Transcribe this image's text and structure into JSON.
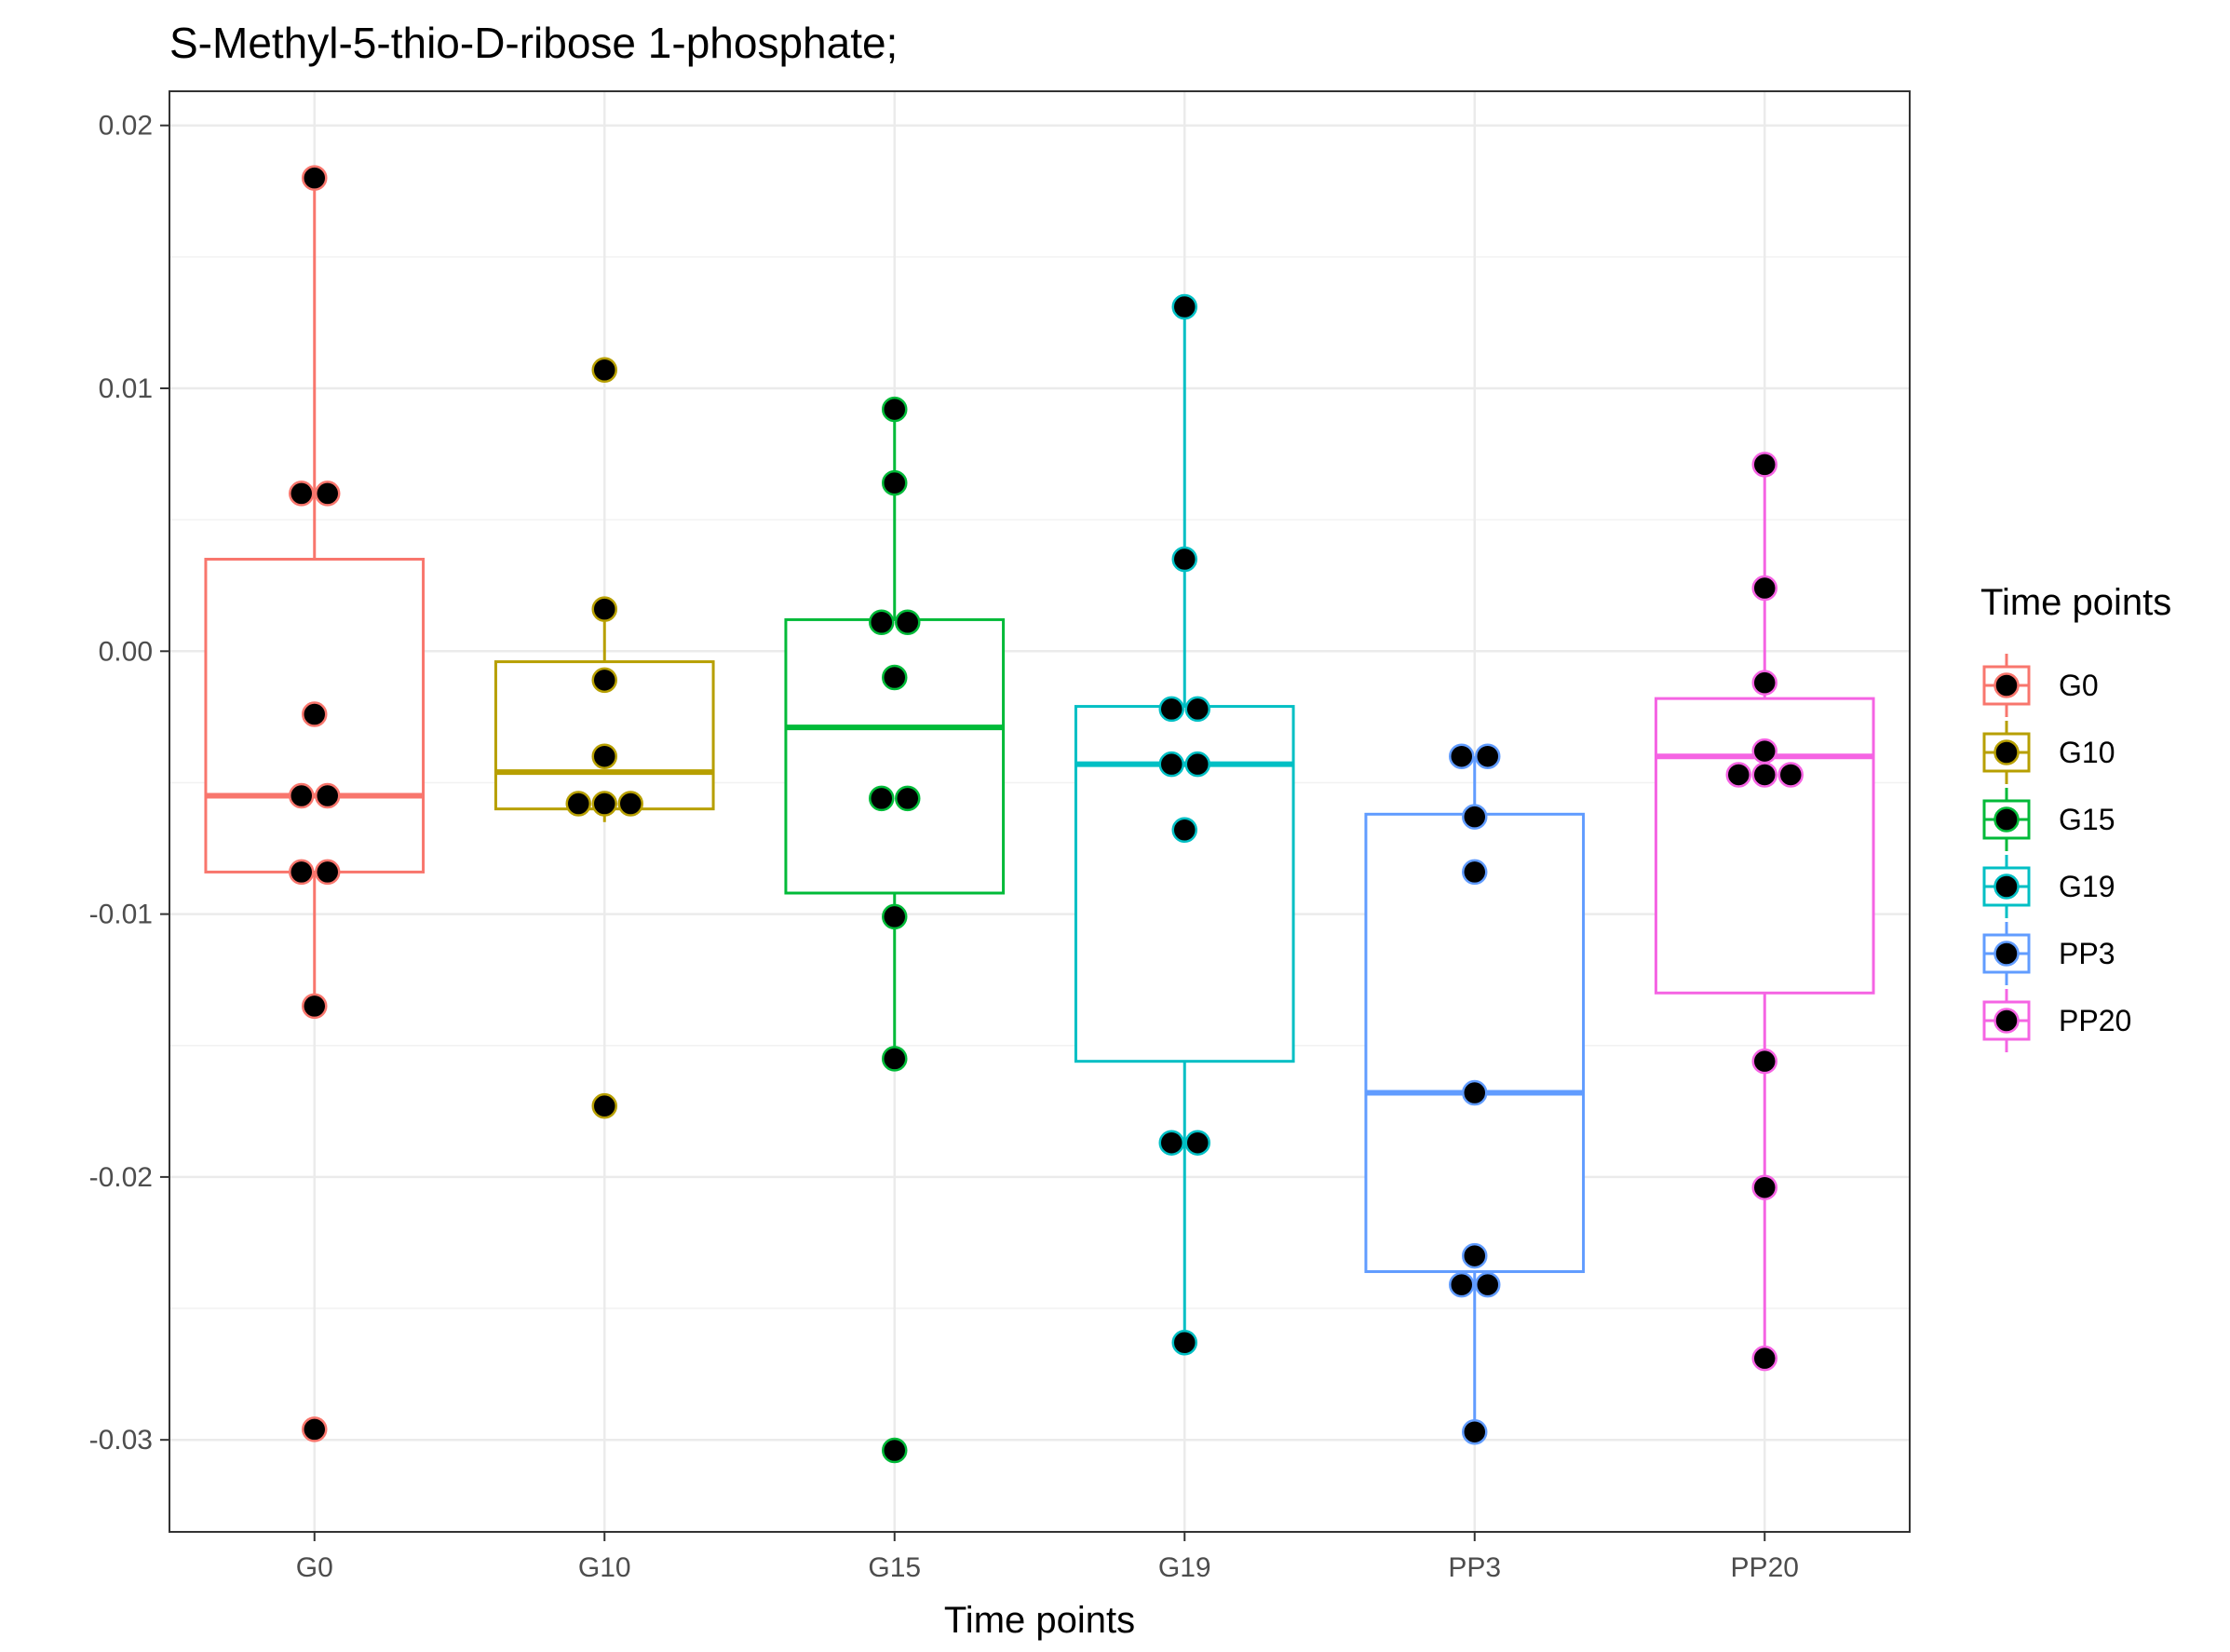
{
  "chart_data": {
    "type": "box",
    "title": "S-Methyl-5-thio-D-ribose 1-phosphate;",
    "xlabel": "Time points",
    "ylabel": "",
    "ylim": [
      -0.0335,
      0.0213
    ],
    "yticks": [
      0.02,
      0.01,
      0.0,
      -0.01,
      -0.02,
      -0.03
    ],
    "ytick_labels": [
      "0.02",
      "0.01",
      "0.00",
      "-0.01",
      "-0.02",
      "-0.03"
    ],
    "grid": true,
    "legend": {
      "title": "Time points",
      "position": "right"
    },
    "categories": [
      "G0",
      "G10",
      "G15",
      "G19",
      "PP3",
      "PP20"
    ],
    "series": [
      {
        "name": "G0",
        "color": "#F8766D",
        "box": {
          "q1": -0.0084,
          "median": -0.0055,
          "q3": 0.0035,
          "whisker_low": -0.0135,
          "whisker_high": 0.018
        },
        "points": [
          0.018,
          0.006,
          0.006,
          -0.0024,
          -0.0055,
          -0.0055,
          -0.0084,
          -0.0084,
          -0.0135,
          -0.0296
        ]
      },
      {
        "name": "G10",
        "color": "#B79F00",
        "box": {
          "q1": -0.006,
          "median": -0.0046,
          "q3": -0.0004,
          "whisker_low": -0.0065,
          "whisker_high": 0.0016
        },
        "points": [
          0.0107,
          0.0016,
          -0.0011,
          -0.004,
          -0.0058,
          -0.0058,
          -0.0058,
          -0.0173
        ]
      },
      {
        "name": "G15",
        "color": "#00BA38",
        "box": {
          "q1": -0.0092,
          "median": -0.0029,
          "q3": 0.0012,
          "whisker_low": -0.0155,
          "whisker_high": 0.0092
        },
        "points": [
          0.0092,
          0.0064,
          0.0011,
          0.0011,
          -0.001,
          -0.0056,
          -0.0056,
          -0.0101,
          -0.0155,
          -0.0304
        ]
      },
      {
        "name": "G19",
        "color": "#00BFC4",
        "box": {
          "q1": -0.0156,
          "median": -0.0043,
          "q3": -0.0021,
          "whisker_low": -0.0263,
          "whisker_high": 0.0131
        },
        "points": [
          0.0131,
          0.0035,
          -0.0022,
          -0.0022,
          -0.0043,
          -0.0043,
          -0.0068,
          -0.0187,
          -0.0187,
          -0.0263
        ]
      },
      {
        "name": "PP3",
        "color": "#619CFF",
        "box": {
          "q1": -0.0236,
          "median": -0.0168,
          "q3": -0.0062,
          "whisker_low": -0.0297,
          "whisker_high": -0.004
        },
        "points": [
          -0.004,
          -0.004,
          -0.0063,
          -0.0084,
          -0.0168,
          -0.023,
          -0.0241,
          -0.0241,
          -0.0297
        ]
      },
      {
        "name": "PP20",
        "color": "#F564E3",
        "box": {
          "q1": -0.013,
          "median": -0.004,
          "q3": -0.0018,
          "whisker_low": -0.0269,
          "whisker_high": 0.0071
        },
        "points": [
          0.0071,
          0.0024,
          -0.0012,
          -0.0038,
          -0.0047,
          -0.0047,
          -0.0047,
          -0.0156,
          -0.0204,
          -0.0269
        ]
      }
    ]
  }
}
